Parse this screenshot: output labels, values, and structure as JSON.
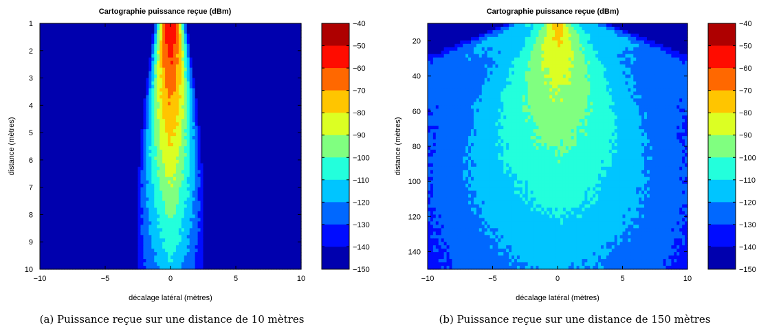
{
  "chart_data": [
    {
      "type": "heatmap",
      "title": "Cartographie puissance reçue (dBm)",
      "xlabel": "décalage latéral (mètres)",
      "ylabel": "distance (mètres)",
      "xlim": [
        -10,
        10
      ],
      "ylim": [
        1,
        10
      ],
      "y_reversed": true,
      "xticks": [
        -10,
        -5,
        0,
        5,
        10
      ],
      "xtick_labels": [
        "−10",
        "−5",
        "0",
        "5",
        "10"
      ],
      "yticks": [
        1,
        2,
        3,
        4,
        5,
        6,
        7,
        8,
        9,
        10
      ],
      "ytick_labels": [
        "1",
        "2",
        "3",
        "4",
        "5",
        "6",
        "7",
        "8",
        "9",
        "10"
      ],
      "colorbar": {
        "min": -150,
        "max": -40,
        "ticks": [
          -40,
          -50,
          -60,
          -70,
          -80,
          -90,
          -100,
          -110,
          -120,
          -130,
          -140,
          -150
        ],
        "tick_labels": [
          "−40",
          "−50",
          "−60",
          "−70",
          "−80",
          "−90",
          "−100",
          "−110",
          "−120",
          "−130",
          "−140",
          "−150"
        ],
        "colormap": "jet"
      },
      "caption": "(a)  Puissance reçue sur une distance de 10 mètres"
    },
    {
      "type": "heatmap",
      "title": "Cartographie puissance reçue (dBm)",
      "xlabel": "décalage latéral (mètres)",
      "ylabel": "distance (mètres)",
      "xlim": [
        -10,
        10
      ],
      "ylim": [
        10,
        150
      ],
      "y_reversed": true,
      "xticks": [
        -10,
        -5,
        0,
        5,
        10
      ],
      "xtick_labels": [
        "−10",
        "−5",
        "0",
        "5",
        "10"
      ],
      "yticks": [
        20,
        40,
        60,
        80,
        100,
        120,
        140
      ],
      "ytick_labels": [
        "20",
        "40",
        "60",
        "80",
        "100",
        "120",
        "140"
      ],
      "colorbar": {
        "min": -150,
        "max": -40,
        "ticks": [
          -40,
          -50,
          -60,
          -70,
          -80,
          -90,
          -100,
          -110,
          -120,
          -130,
          -140,
          -150
        ],
        "tick_labels": [
          "−40",
          "−50",
          "−60",
          "−70",
          "−80",
          "−90",
          "−100",
          "−110",
          "−120",
          "−130",
          "−140",
          "−150"
        ],
        "colormap": "jet"
      },
      "caption": "(b)  Puissance reçue sur une distance de 150 mètres"
    }
  ]
}
